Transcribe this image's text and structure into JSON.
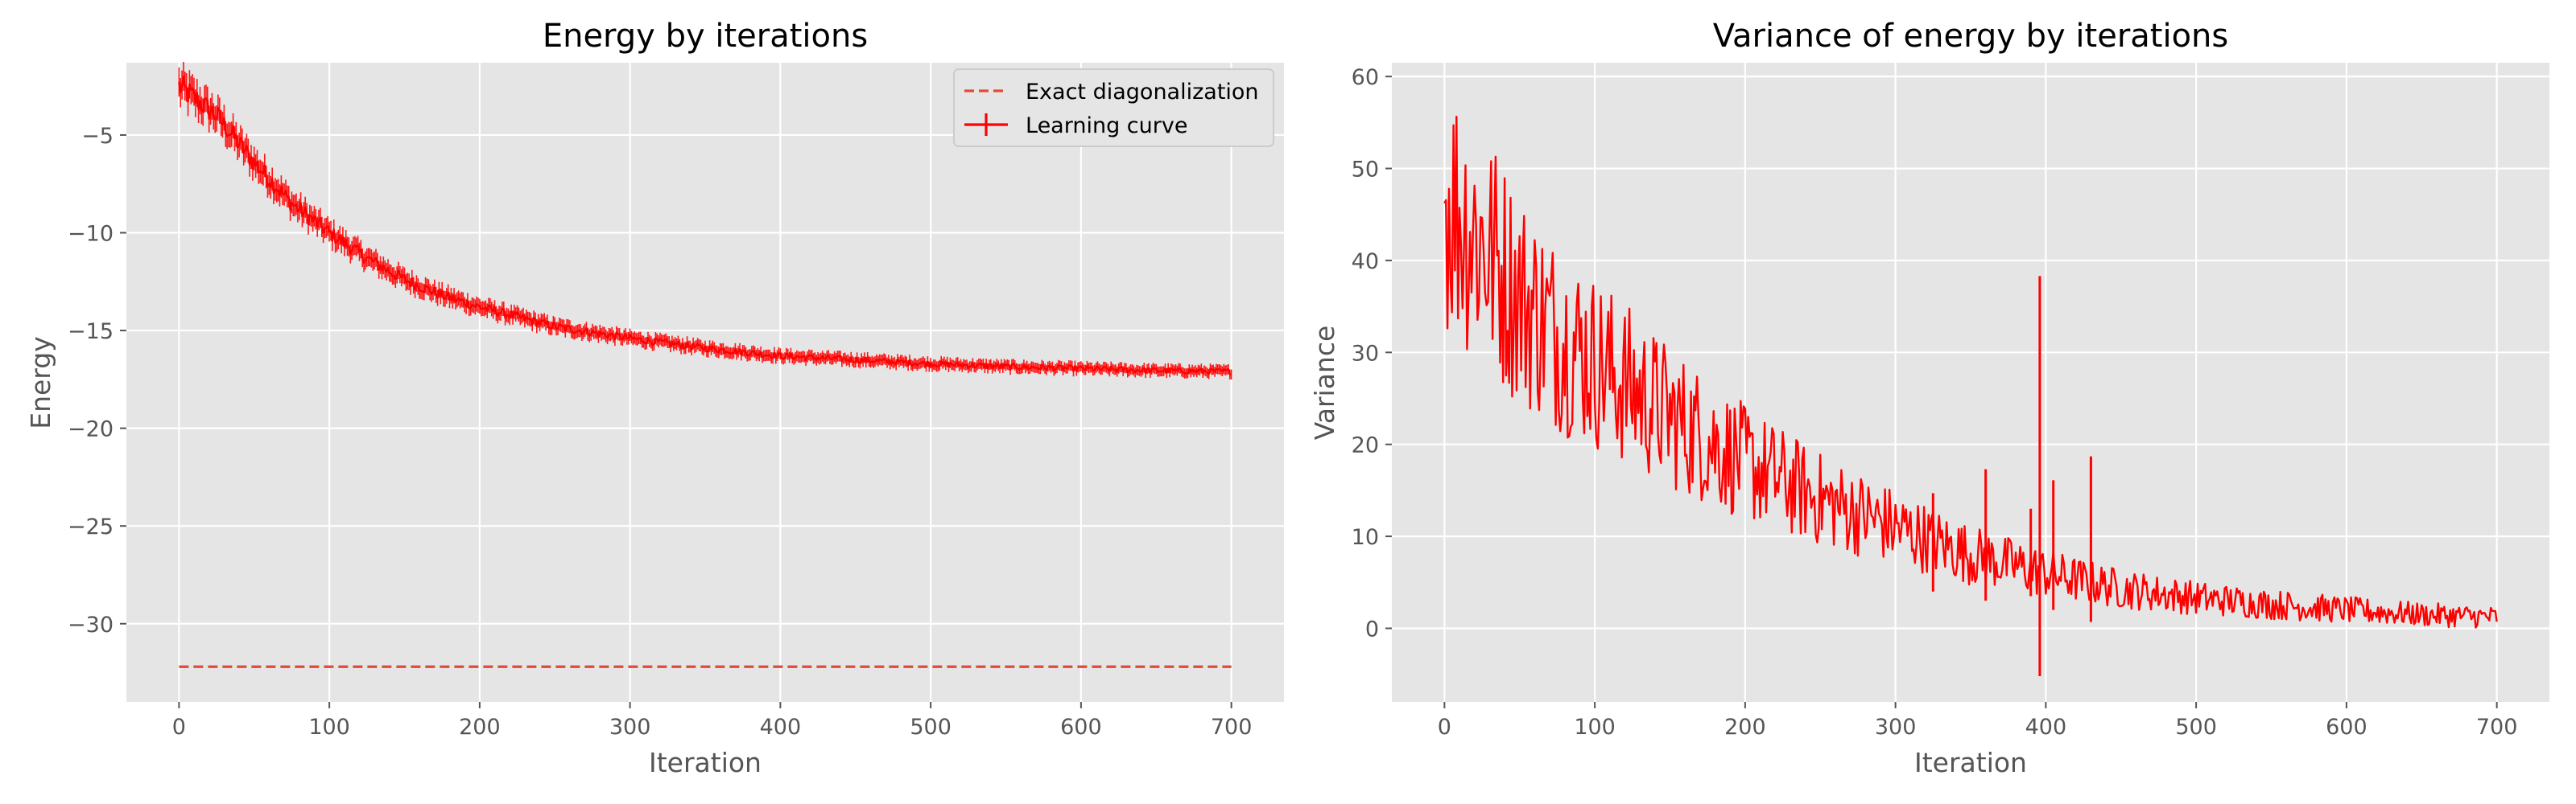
{
  "chart_data": [
    {
      "type": "line",
      "title": "Energy by iterations",
      "xlabel": "Iteration",
      "ylabel": "Energy",
      "xlim": [
        -35,
        735
      ],
      "ylim": [
        -34,
        -1.3
      ],
      "xticks": [
        0,
        100,
        200,
        300,
        400,
        500,
        600,
        700
      ],
      "yticks": [
        -30,
        -25,
        -20,
        -15,
        -10,
        -5
      ],
      "grid": true,
      "legend_position": "top-right",
      "series": [
        {
          "name": "Learning curve",
          "style": "solid-errorbar",
          "color": "#ff0000",
          "x": [
            0,
            25,
            50,
            75,
            100,
            125,
            150,
            175,
            200,
            250,
            300,
            350,
            400,
            450,
            500,
            550,
            600,
            650,
            700
          ],
          "y": [
            -2.5,
            -4.0,
            -6.4,
            -8.5,
            -10.0,
            -11.3,
            -12.4,
            -13.2,
            -13.8,
            -14.8,
            -15.4,
            -15.9,
            -16.3,
            -16.5,
            -16.7,
            -16.85,
            -16.95,
            -17.05,
            -17.1
          ]
        },
        {
          "name": "Exact diagonalization",
          "style": "dashed",
          "color": "#e24a33",
          "x": [
            0,
            700
          ],
          "y": [
            -32.2,
            -32.2
          ]
        }
      ]
    },
    {
      "type": "line",
      "title": "Variance of energy by iterations",
      "xlabel": "Iteration",
      "ylabel": "Variance",
      "xlim": [
        -35,
        735
      ],
      "ylim": [
        -8,
        61.5
      ],
      "xticks": [
        0,
        100,
        200,
        300,
        400,
        500,
        600,
        700
      ],
      "yticks": [
        0,
        10,
        20,
        30,
        40,
        50,
        60
      ],
      "grid": true,
      "series": [
        {
          "style": "solid",
          "color": "#ff0000",
          "x": [
            0,
            25,
            50,
            75,
            100,
            150,
            200,
            250,
            300,
            350,
            400,
            450,
            500,
            550,
            600,
            650,
            700
          ],
          "y": [
            47,
            42,
            36,
            32,
            29,
            23,
            18,
            14,
            11,
            8,
            6,
            4.3,
            3.3,
            2.6,
            2.0,
            1.5,
            1.2
          ],
          "spikes": [
            {
              "x": 396,
              "high": 38.3,
              "low": -5.2
            },
            {
              "x": 430,
              "high": 18.7,
              "low": 0.7
            },
            {
              "x": 405,
              "high": 16.1,
              "low": 2.0
            },
            {
              "x": 360,
              "high": 17.3,
              "low": 3.0
            },
            {
              "x": 325,
              "high": 14.7,
              "low": 4.0
            },
            {
              "x": 390,
              "high": 13.0,
              "low": 3.5
            }
          ]
        }
      ]
    }
  ]
}
